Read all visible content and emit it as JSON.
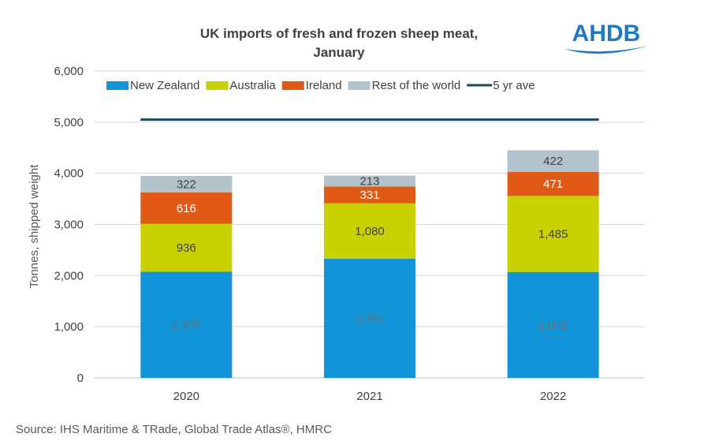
{
  "logo": {
    "text": "AHDB",
    "color": "#1f78c1"
  },
  "source": "Source: IHS Maritime & TRade, Global Trade Atlas®, HMRC",
  "chart_data": {
    "type": "bar",
    "stacked": true,
    "title": "UK imports of fresh and frozen sheep meat,",
    "subtitle": "January",
    "ylabel": "Tonnes, shipped weight",
    "xlabel": "",
    "categories": [
      "2020",
      "2021",
      "2022"
    ],
    "ylim": [
      0,
      6000
    ],
    "yticks": [
      0,
      1000,
      2000,
      3000,
      4000,
      5000,
      6000
    ],
    "ytick_labels": [
      "0",
      "1,000",
      "2,000",
      "3,000",
      "4,000",
      "5,000",
      "6,000"
    ],
    "grid": true,
    "legend_position": "top",
    "series": [
      {
        "name": "New Zealand",
        "color": "#1295d8",
        "label_color": "#6f6f6f",
        "values": [
          2075,
          2332,
          2072
        ],
        "labels": [
          "2,075",
          "2,332",
          "2,072"
        ]
      },
      {
        "name": "Australia",
        "color": "#c9d200",
        "label_color": "#404040",
        "values": [
          936,
          1080,
          1485
        ],
        "labels": [
          "936",
          "1,080",
          "1,485"
        ]
      },
      {
        "name": "Ireland",
        "color": "#e05a16",
        "label_color": "#ffffff",
        "values": [
          616,
          331,
          471
        ],
        "labels": [
          "616",
          "331",
          "471"
        ]
      },
      {
        "name": "Rest of the world",
        "color": "#b3c3cd",
        "label_color": "#404040",
        "values": [
          322,
          213,
          422
        ],
        "labels": [
          "322",
          "213",
          "422"
        ]
      }
    ],
    "line": {
      "name": "5 yr ave",
      "color": "#1a4a5e",
      "value": 5050
    }
  }
}
